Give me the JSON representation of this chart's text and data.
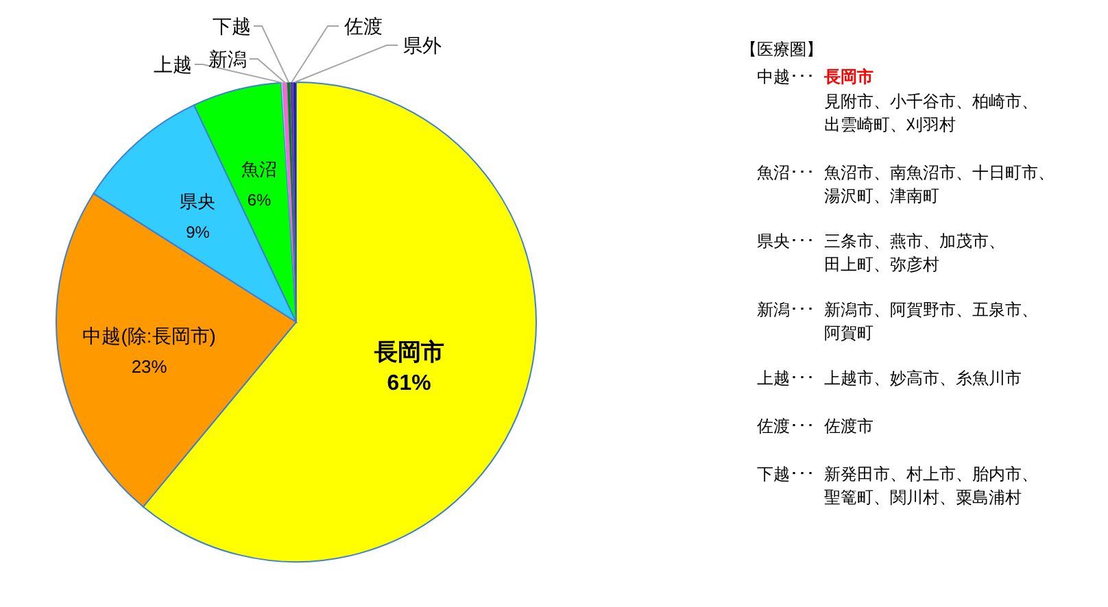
{
  "chart_data": {
    "type": "pie",
    "categories": [
      "長岡市",
      "中越(除:長岡市)",
      "県央",
      "魚沼",
      "上越",
      "新潟",
      "下越",
      "佐渡",
      "県外"
    ],
    "values": [
      61,
      23,
      9,
      6,
      0.1,
      0.3,
      0.2,
      0.2,
      0.2
    ],
    "value_labels": [
      "61%",
      "23%",
      "9%",
      "6%",
      null,
      null,
      null,
      null,
      null
    ],
    "colors": [
      "#ffff00",
      "#ff9900",
      "#33ccff",
      "#00ff00",
      "#ccccff",
      "#ff66cc",
      "#008000",
      "#7030a0",
      "#1f1f9f"
    ],
    "annotations": [
      "【医療圏】",
      "中越･･･",
      "長岡市",
      "見附市、小千谷市、柏崎市、",
      "出雲崎町、刈羽村",
      "魚沼･･･",
      "魚沼市、南魚沼市、十日町市、",
      "湯沢町、津南町",
      "県央･･･",
      "三条市、燕市、加茂市、",
      "田上町、弥彦村",
      "新潟･･･",
      "新潟市、阿賀野市、五泉市、",
      "阿賀町",
      "上越･･･",
      "上越市、妙高市、糸魚川市",
      "佐渡･･･",
      "佐渡市",
      "下越･･･",
      "新発田市、村上市、胎内市、",
      "聖篭町、関川村、粟島浦村"
    ]
  }
}
